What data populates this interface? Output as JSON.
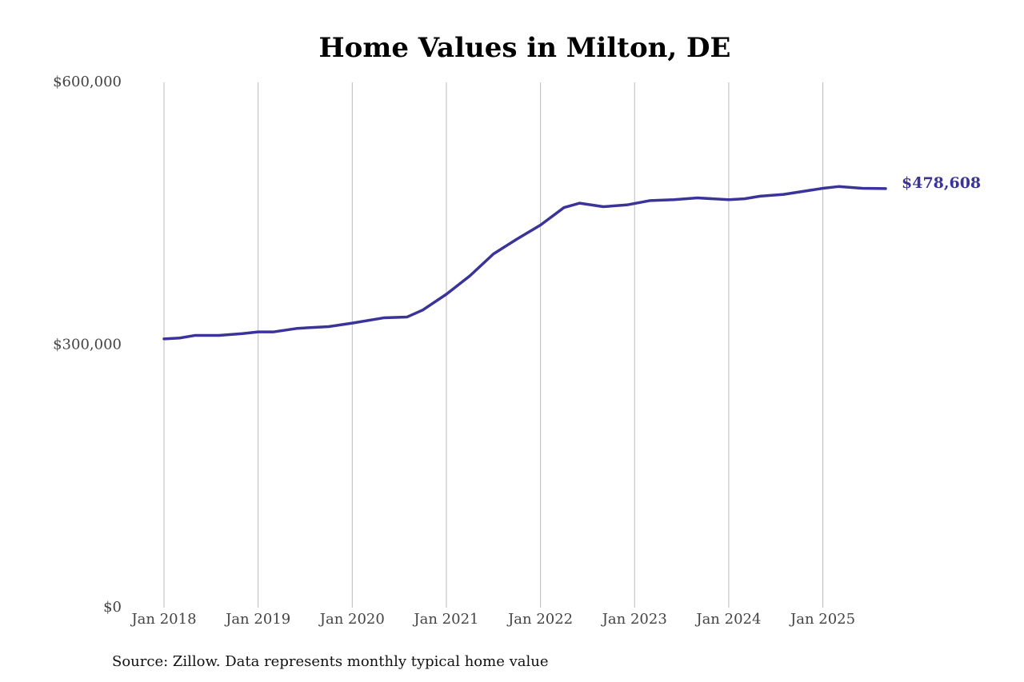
{
  "chart_data": {
    "type": "line",
    "title": "Home Values in Milton, DE",
    "source": "Source: Zillow. Data represents monthly typical home value",
    "x": [
      "2018-01",
      "2018-03",
      "2018-05",
      "2018-08",
      "2018-11",
      "2019-01",
      "2019-03",
      "2019-06",
      "2019-10",
      "2020-01",
      "2020-05",
      "2020-08",
      "2020-10",
      "2021-01",
      "2021-04",
      "2021-07",
      "2021-10",
      "2022-01",
      "2022-04",
      "2022-06",
      "2022-09",
      "2022-12",
      "2023-03",
      "2023-06",
      "2023-09",
      "2024-01",
      "2024-03",
      "2024-05",
      "2024-08",
      "2025-01",
      "2025-03",
      "2025-06",
      "2025-09"
    ],
    "series": [
      {
        "name": "Milton, DE",
        "color": "#3a3399",
        "values": [
          307000,
          308000,
          311000,
          311000,
          313000,
          315000,
          315000,
          319000,
          321000,
          325000,
          331000,
          332000,
          340000,
          358000,
          379000,
          404000,
          421000,
          437000,
          457000,
          462000,
          458000,
          460000,
          465000,
          466000,
          468000,
          466000,
          467000,
          470000,
          472000,
          479000,
          481000,
          479000,
          478608
        ],
        "value_labels": [
          null,
          null,
          null,
          null,
          null,
          null,
          null,
          null,
          null,
          null,
          null,
          null,
          null,
          null,
          null,
          null,
          null,
          null,
          null,
          null,
          null,
          null,
          null,
          null,
          null,
          null,
          null,
          null,
          null,
          null,
          null,
          null,
          "$478,608"
        ]
      }
    ],
    "xlim": [
      "2018-01",
      "2025-09"
    ],
    "xticks": [
      {
        "value": "2018-01",
        "label": "Jan 2018"
      },
      {
        "value": "2019-01",
        "label": "Jan 2019"
      },
      {
        "value": "2020-01",
        "label": "Jan 2020"
      },
      {
        "value": "2021-01",
        "label": "Jan 2021"
      },
      {
        "value": "2022-01",
        "label": "Jan 2022"
      },
      {
        "value": "2023-01",
        "label": "Jan 2023"
      },
      {
        "value": "2024-01",
        "label": "Jan 2024"
      },
      {
        "value": "2025-01",
        "label": "Jan 2025"
      }
    ],
    "ylim": [
      0,
      600000
    ],
    "yticks": [
      {
        "value": 0,
        "label": "$0"
      },
      {
        "value": 300000,
        "label": "$300,000"
      },
      {
        "value": 600000,
        "label": "$600,000"
      }
    ],
    "grid": "x"
  }
}
